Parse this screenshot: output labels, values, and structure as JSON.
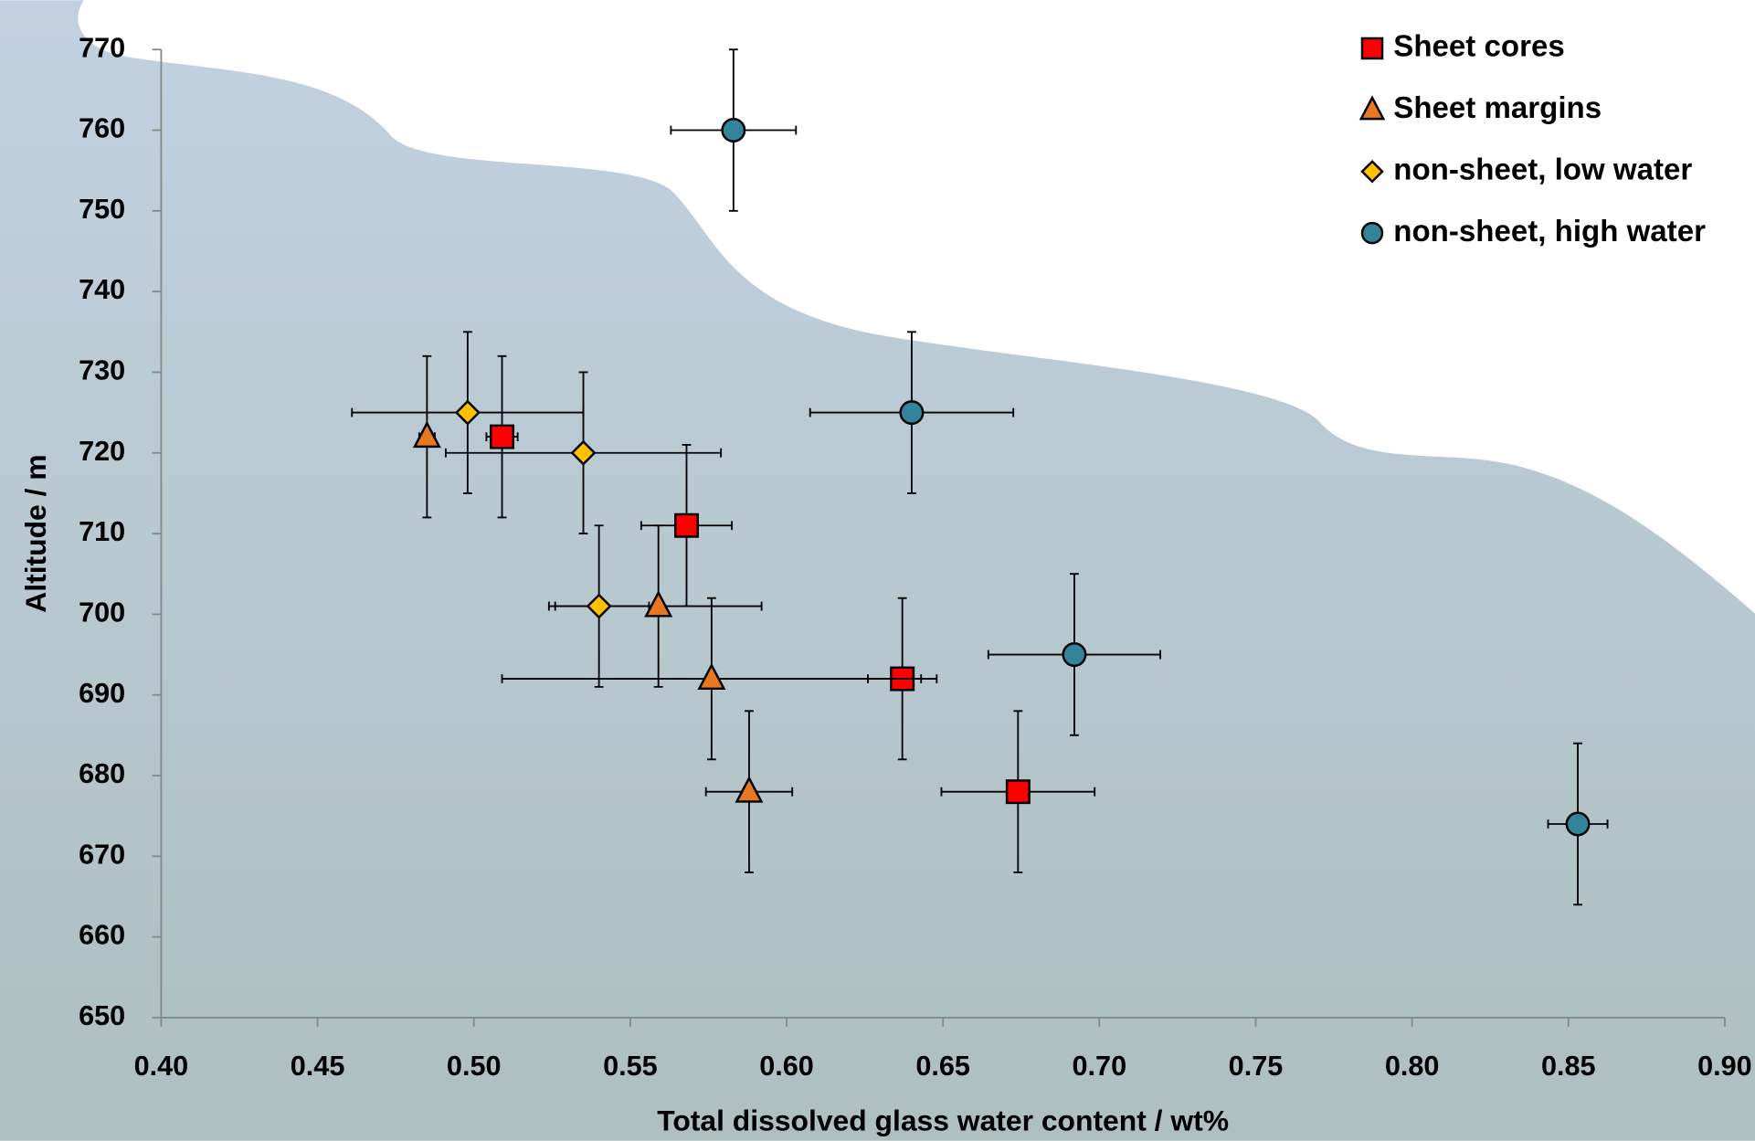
{
  "chart_data": {
    "type": "scatter",
    "x_label": "Total dissolved glass water content / wt%",
    "y_label": "Altitude / m",
    "xlim": [
      0.4,
      0.9
    ],
    "ylim": [
      650,
      770
    ],
    "xticks": [
      {
        "value": 0.4,
        "label": "0.40"
      },
      {
        "value": 0.45,
        "label": "0.45"
      },
      {
        "value": 0.5,
        "label": "0.50"
      },
      {
        "value": 0.55,
        "label": "0.55"
      },
      {
        "value": 0.6,
        "label": "0.60"
      },
      {
        "value": 0.65,
        "label": "0.65"
      },
      {
        "value": 0.7,
        "label": "0.70"
      },
      {
        "value": 0.75,
        "label": "0.75"
      },
      {
        "value": 0.8,
        "label": "0.80"
      },
      {
        "value": 0.85,
        "label": "0.85"
      },
      {
        "value": 0.9,
        "label": "0.90"
      }
    ],
    "yticks": [
      650,
      660,
      670,
      680,
      690,
      700,
      710,
      720,
      730,
      740,
      750,
      760,
      770
    ],
    "legend": "top-right",
    "series": [
      {
        "name": "Sheet cores",
        "marker": "square",
        "color": "#ff0000",
        "x": [
          0.509,
          0.568,
          0.637,
          0.674
        ],
        "y": [
          722,
          711,
          692,
          678
        ],
        "x_err": [
          0.005,
          0.0145,
          0.011,
          0.0245
        ],
        "y_err": [
          10,
          10,
          10,
          10
        ]
      },
      {
        "name": "Sheet margins",
        "marker": "triangle",
        "color": "#e87722",
        "x": [
          0.485,
          0.559,
          0.576,
          0.588
        ],
        "y": [
          722,
          701,
          692,
          678
        ],
        "x_err": [
          0.0025,
          0.033,
          0.067,
          0.0138
        ],
        "y_err": [
          10,
          10,
          10,
          10
        ]
      },
      {
        "name": "non-sheet, low water",
        "marker": "diamond",
        "color": "#ffc000",
        "x": [
          0.498,
          0.535,
          0.54
        ],
        "y": [
          725,
          720,
          701
        ],
        "x_err": [
          0.037,
          0.044,
          0.016
        ],
        "y_err": [
          10,
          10,
          10
        ]
      },
      {
        "name": "non-sheet, high water",
        "marker": "circle",
        "color": "#31849b",
        "x": [
          0.583,
          0.64,
          0.692,
          0.853
        ],
        "y": [
          760,
          725,
          695,
          674
        ],
        "x_err": [
          0.02,
          0.0325,
          0.0275,
          0.0095
        ],
        "y_err": [
          10,
          10,
          10,
          10
        ]
      }
    ]
  }
}
